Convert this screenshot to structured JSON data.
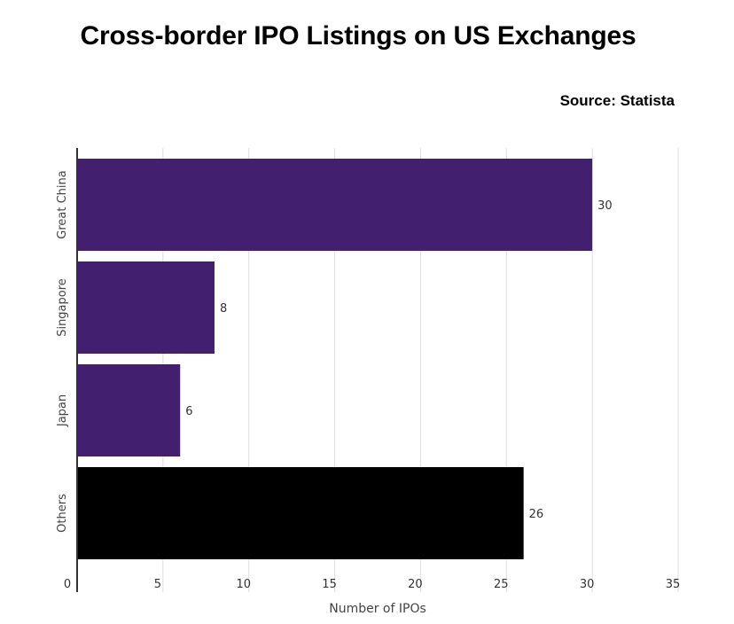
{
  "header": {
    "title": "Cross-border IPO Listings on US Exchanges",
    "source": "Source: Statista"
  },
  "colors": {
    "primary_bar": "#42206f",
    "others_bar": "#000000",
    "grid": "#dddddd",
    "axis": "#333333"
  },
  "chart_data": {
    "type": "bar",
    "orientation": "horizontal",
    "categories": [
      "Great China",
      "Singapore",
      "Japan",
      "Others"
    ],
    "values": [
      30,
      8,
      6,
      26
    ],
    "data_labels": [
      "30",
      "8",
      "6",
      "26"
    ],
    "bar_colors": [
      "#42206f",
      "#42206f",
      "#42206f",
      "#000000"
    ],
    "title": "Cross-border IPO Listings on US Exchanges",
    "xlabel": "Number of IPOs",
    "ylabel": "",
    "xlim": [
      0,
      35
    ],
    "x_ticks": [
      0,
      5,
      10,
      15,
      20,
      25,
      30,
      35
    ],
    "grid": true
  }
}
